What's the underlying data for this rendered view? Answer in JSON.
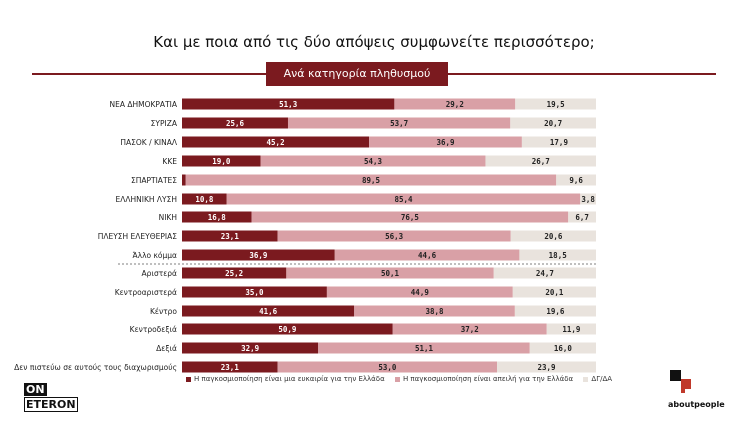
{
  "title": "Και με ποια από τις δύο απόψεις συμφωνείτε περισσότερο;",
  "subtitle": "Ανά κατηγορία πληθυσμού",
  "chart_data": {
    "type": "bar",
    "stacked": true,
    "orientation": "horizontal",
    "categories": [
      "ΝΕΑ ΔΗΜΟΚΡΑΤΙΑ",
      "ΣΥΡΙΖΑ",
      "ΠΑΣΟΚ / ΚΙΝΑΛ",
      "ΚΚΕ",
      "ΣΠΑΡΤΙΑΤΕΣ",
      "ΕΛΛΗΝΙΚΗ ΛΥΣΗ",
      "ΝΙΚΗ",
      "ΠΛΕΥΣΗ ΕΛΕΥΘΕΡΙΑΣ",
      "Άλλο κόμμα",
      "Αριστερά",
      "Κεντροαριστερά",
      "Κέντρο",
      "Κεντροδεξιά",
      "Δεξιά",
      "Δεν πιστεύω σε αυτούς τους διαχωρισμούς"
    ],
    "series": [
      {
        "name": "Η παγκοσμιοποίηση είναι μια ευκαιρία για την Ελλάδα",
        "color": "#7b1a1f",
        "values": [
          51.3,
          25.6,
          45.2,
          19.0,
          0.9,
          10.8,
          16.8,
          23.1,
          36.9,
          25.2,
          35.0,
          41.6,
          50.9,
          32.9,
          23.1
        ],
        "labels": [
          "51,3",
          "25,6",
          "45,2",
          "19,0",
          "",
          "10,8",
          "16,8",
          "23,1",
          "36,9",
          "25,2",
          "35,0",
          "41,6",
          "50,9",
          "32,9",
          "23,1"
        ]
      },
      {
        "name": "Η παγκοσμιοποίηση είναι απειλή για την Ελλάδα",
        "color": "#d9a0a6",
        "values": [
          29.2,
          53.7,
          36.9,
          54.3,
          89.5,
          85.4,
          76.5,
          56.3,
          44.6,
          50.1,
          44.9,
          38.8,
          37.2,
          51.1,
          53.0
        ],
        "labels": [
          "29,2",
          "53,7",
          "36,9",
          "54,3",
          "89,5",
          "85,4",
          "76,5",
          "56,3",
          "44,6",
          "50,1",
          "44,9",
          "38,8",
          "37,2",
          "51,1",
          "53,0"
        ]
      },
      {
        "name": "ΔΓ/ΔΑ",
        "color": "#e9e3dd",
        "values": [
          19.5,
          20.7,
          17.9,
          26.7,
          9.6,
          3.8,
          6.7,
          20.6,
          18.5,
          24.7,
          20.1,
          19.6,
          11.9,
          16.0,
          23.9
        ],
        "labels": [
          "19,5",
          "20,7",
          "17,9",
          "26,7",
          "9,6",
          "3,8",
          "6,7",
          "20,6",
          "18,5",
          "24,7",
          "20,1",
          "19,6",
          "11,9",
          "16,0",
          "23,9"
        ]
      }
    ],
    "xlim": [
      0,
      100
    ],
    "grid": false,
    "legend": "bottom",
    "group_separator_after": "Άλλο κόμμα"
  },
  "logos": {
    "left_top": "ON",
    "left_bottom": "ETERON",
    "right": "aboutpeople"
  },
  "colors": {
    "accent": "#7b1a1f",
    "threat": "#d9a0a6",
    "dkna": "#e9e3dd"
  }
}
